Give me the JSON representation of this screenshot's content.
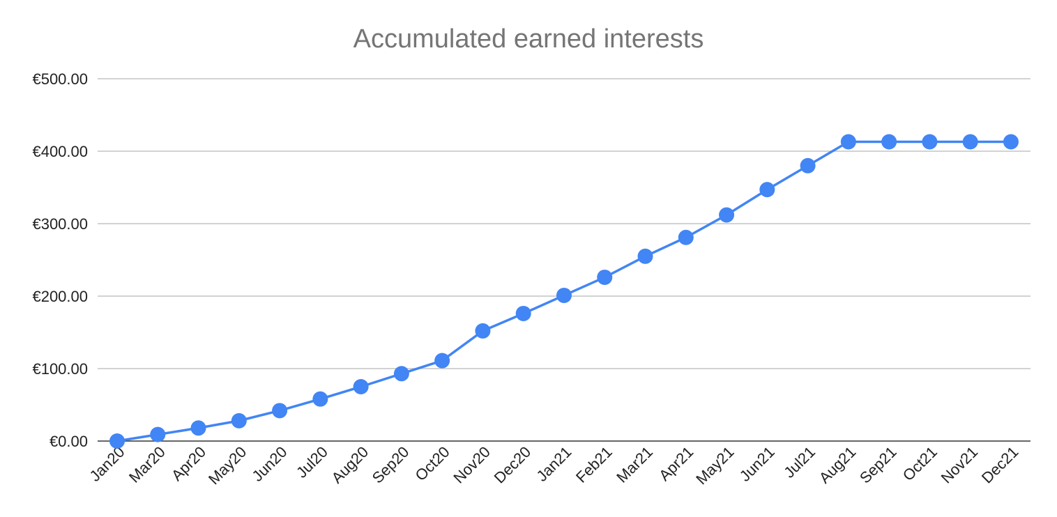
{
  "chart_data": {
    "type": "line",
    "title": "Accumulated earned interests",
    "xlabel": "",
    "ylabel": "",
    "categories": [
      "Jan20",
      "Mar20",
      "Apr20",
      "May20",
      "Jun20",
      "Jul20",
      "Aug20",
      "Sep20",
      "Oct20",
      "Nov20",
      "Dec20",
      "Jan21",
      "Feb21",
      "Mar21",
      "Apr21",
      "May21",
      "Jun21",
      "Jul21",
      "Aug21",
      "Sep21",
      "Oct21",
      "Nov21",
      "Dec21"
    ],
    "series": [
      {
        "values": [
          0,
          9,
          18,
          28,
          42,
          58,
          75,
          93,
          111,
          152,
          176,
          201,
          226,
          255,
          281,
          312,
          347,
          380,
          413,
          413,
          413,
          413,
          413
        ]
      }
    ],
    "ylim": [
      0,
      500
    ],
    "yticks": [
      0,
      100,
      200,
      300,
      400,
      500
    ],
    "ytick_labels": [
      "€0.00",
      "€100.00",
      "€200.00",
      "€300.00",
      "€400.00",
      "€500.00"
    ],
    "grid": true,
    "legend": "none",
    "colors": {
      "series": "#4285f4",
      "grid": "#c4c4c4",
      "title": "#757575",
      "axis": "#333333"
    }
  }
}
